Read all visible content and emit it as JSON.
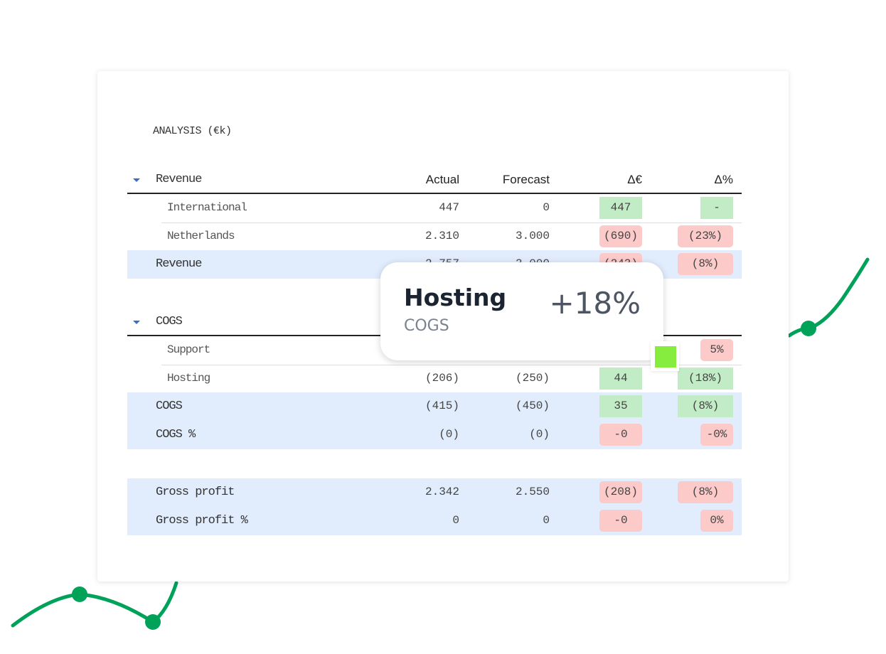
{
  "title": "ANALYSIS (€k)",
  "columns": [
    "Actual",
    "Forecast",
    "Δ€",
    "Δ%"
  ],
  "sections": [
    {
      "name": "Revenue",
      "rows": [
        {
          "label": "International",
          "actual": "447",
          "forecast": "0",
          "d_eur": "447",
          "d_eur_sign": "pos",
          "d_pct": "-",
          "d_pct_sign": "pos"
        },
        {
          "label": "Netherlands",
          "actual": "2.310",
          "forecast": "3.000",
          "d_eur": "(690)",
          "d_eur_sign": "neg",
          "d_pct": "(23%)",
          "d_pct_sign": "neg"
        }
      ],
      "total": {
        "label": "Revenue",
        "actual": "2.757",
        "forecast": "3.000",
        "d_eur": "(243)",
        "d_pct": "(8%)"
      }
    },
    {
      "name": "COGS",
      "rows": [
        {
          "label": "Support",
          "d_pct": "5%",
          "d_pct_sign": "neg"
        },
        {
          "label": "Hosting",
          "actual": "(206)",
          "forecast": "(250)",
          "d_eur": "44",
          "d_eur_sign": "pos",
          "d_pct": "(18%)",
          "d_pct_sign": "pos"
        }
      ],
      "totals": [
        {
          "label": "COGS",
          "actual": "(415)",
          "forecast": "(450)",
          "d_eur": "35",
          "d_pct": "(8%)"
        },
        {
          "label": "COGS %",
          "actual": "(0)",
          "forecast": "(0)",
          "d_eur": "-0",
          "d_pct": "-0%"
        }
      ]
    }
  ],
  "gross": [
    {
      "label": "Gross profit",
      "actual": "2.342",
      "forecast": "2.550",
      "d_eur": "(208)",
      "d_pct": "(8%)"
    },
    {
      "label": "Gross profit %",
      "actual": "0",
      "forecast": "0",
      "d_eur": "-0",
      "d_pct": "0%"
    }
  ],
  "tooltip": {
    "name": "Hosting",
    "category": "COGS",
    "change": "+18%"
  },
  "colors": {
    "positive": "#c2ecc6",
    "negative": "#fdcaca",
    "total_row": "#e1ecfc",
    "accent_line": "#00a25a",
    "marker": "#86ec3e"
  }
}
